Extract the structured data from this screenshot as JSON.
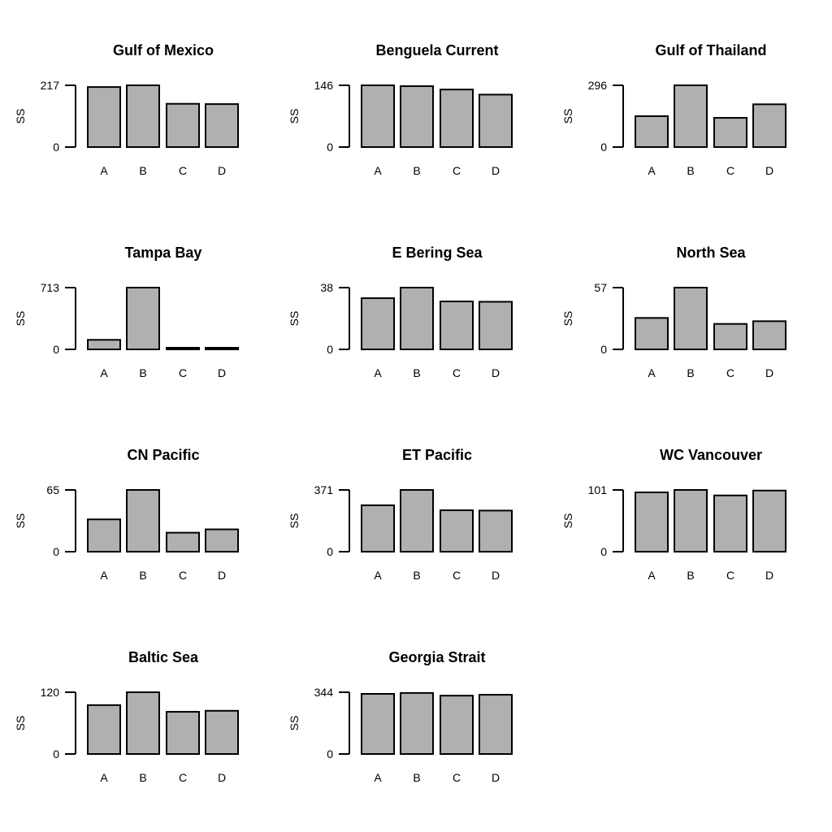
{
  "colors": {
    "bar_fill": "#b0b0b0",
    "stroke": "#000000",
    "background": "#ffffff"
  },
  "chart_data": [
    {
      "type": "bar",
      "title": "Gulf of Mexico",
      "ylabel": "SS",
      "categories": [
        "A",
        "B",
        "C",
        "D"
      ],
      "values": [
        211,
        217,
        152,
        151
      ],
      "ylim": [
        0,
        217
      ],
      "yticks": [
        "0",
        "217"
      ]
    },
    {
      "type": "bar",
      "title": "Benguela Current",
      "ylabel": "SS",
      "categories": [
        "A",
        "B",
        "C",
        "D"
      ],
      "values": [
        146,
        144,
        136,
        124
      ],
      "ylim": [
        0,
        146
      ],
      "yticks": [
        "0",
        "146"
      ]
    },
    {
      "type": "bar",
      "title": "Gulf of Thailand",
      "ylabel": "SS",
      "categories": [
        "A",
        "B",
        "C",
        "D"
      ],
      "values": [
        148,
        296,
        140,
        205
      ],
      "ylim": [
        0,
        296
      ],
      "yticks": [
        "0",
        "296"
      ]
    },
    {
      "type": "bar",
      "title": "Tampa Bay",
      "ylabel": "SS",
      "categories": [
        "A",
        "B",
        "C",
        "D"
      ],
      "values": [
        110,
        713,
        12,
        12
      ],
      "ylim": [
        0,
        713
      ],
      "yticks": [
        "0",
        "713"
      ]
    },
    {
      "type": "bar",
      "title": "E Bering Sea",
      "ylabel": "SS",
      "categories": [
        "A",
        "B",
        "C",
        "D"
      ],
      "values": [
        31.5,
        38,
        29.5,
        29.3
      ],
      "ylim": [
        0,
        38
      ],
      "yticks": [
        "0",
        "38"
      ]
    },
    {
      "type": "bar",
      "title": "North Sea",
      "ylabel": "SS",
      "categories": [
        "A",
        "B",
        "C",
        "D"
      ],
      "values": [
        29,
        57,
        23.5,
        26
      ],
      "ylim": [
        0,
        57
      ],
      "yticks": [
        "0",
        "57"
      ]
    },
    {
      "type": "bar",
      "title": "CN Pacific",
      "ylabel": "SS",
      "categories": [
        "A",
        "B",
        "C",
        "D"
      ],
      "values": [
        34,
        65,
        20,
        23.5
      ],
      "ylim": [
        0,
        65
      ],
      "yticks": [
        "0",
        "65"
      ]
    },
    {
      "type": "bar",
      "title": "ET Pacific",
      "ylabel": "SS",
      "categories": [
        "A",
        "B",
        "C",
        "D"
      ],
      "values": [
        279,
        371,
        249,
        247
      ],
      "ylim": [
        0,
        371
      ],
      "yticks": [
        "0",
        "371"
      ]
    },
    {
      "type": "bar",
      "title": "WC Vancouver",
      "ylabel": "SS",
      "categories": [
        "A",
        "B",
        "C",
        "D"
      ],
      "values": [
        97,
        101,
        92,
        100
      ],
      "ylim": [
        0,
        101
      ],
      "yticks": [
        "0",
        "101"
      ]
    },
    {
      "type": "bar",
      "title": "Baltic Sea",
      "ylabel": "SS",
      "categories": [
        "A",
        "B",
        "C",
        "D"
      ],
      "values": [
        95,
        120,
        82,
        84
      ],
      "ylim": [
        0,
        120
      ],
      "yticks": [
        "0",
        "120"
      ]
    },
    {
      "type": "bar",
      "title": "Georgia Strait",
      "ylabel": "SS",
      "categories": [
        "A",
        "B",
        "C",
        "D"
      ],
      "values": [
        335,
        340,
        325,
        330
      ],
      "ylim": [
        0,
        344
      ],
      "yticks": [
        "0",
        "344"
      ]
    }
  ]
}
